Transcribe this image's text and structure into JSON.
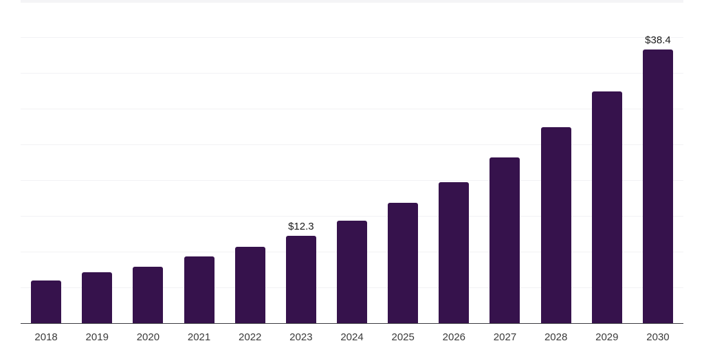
{
  "chart_data": {
    "type": "bar",
    "title": "",
    "xlabel": "",
    "ylabel": "",
    "categories": [
      "2018",
      "2019",
      "2020",
      "2021",
      "2022",
      "2023",
      "2024",
      "2025",
      "2026",
      "2027",
      "2028",
      "2029",
      "2030"
    ],
    "values": [
      6.1,
      7.2,
      8.0,
      9.4,
      10.8,
      12.3,
      14.4,
      16.9,
      19.8,
      23.3,
      27.5,
      32.5,
      38.4
    ],
    "data_labels": [
      null,
      null,
      null,
      null,
      null,
      "$12.3",
      null,
      null,
      null,
      null,
      null,
      null,
      "$38.4"
    ],
    "ylim": [
      0,
      45
    ],
    "gridline_step": 5,
    "grid": "horizontal-only",
    "y_axis_labels_visible": false,
    "legend": "none",
    "colors": {
      "bar": "#36124c",
      "background": "#ffffff",
      "gridline": "#f2f2f4",
      "top_band": "#f4f4f6",
      "axis_line": "#3a3a40",
      "value_label": "#1b1b1b",
      "tick_label": "#3a3a3a"
    }
  }
}
